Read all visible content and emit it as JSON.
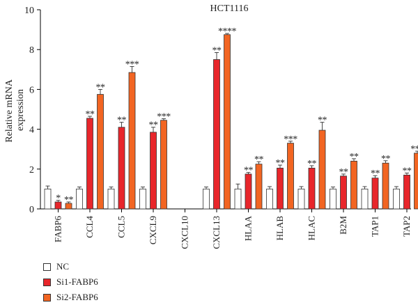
{
  "chart_data": {
    "type": "bar",
    "title": "HCT1116",
    "ylabel": "Relative mRNA expression",
    "ylim": [
      0,
      10
    ],
    "yticks": [
      0,
      2,
      4,
      6,
      8,
      10
    ],
    "categories": [
      "FABP6",
      "CCL4",
      "CCL5",
      "CXCL9",
      "CXCL10",
      "CXCL13",
      "HLAA",
      "HLAB",
      "HLAC",
      "B2M",
      "TAP1",
      "TAP2"
    ],
    "series": [
      {
        "name": "NC",
        "color": "#ffffff",
        "values": [
          1.0,
          1.0,
          1.0,
          1.0,
          null,
          1.0,
          1.0,
          1.0,
          1.0,
          1.0,
          1.0,
          1.0
        ],
        "errors": [
          0.15,
          0.1,
          0.1,
          0.1,
          null,
          0.1,
          0.25,
          0.12,
          0.12,
          0.1,
          0.12,
          0.12
        ],
        "sig": [
          "",
          "",
          "",
          "",
          "",
          "",
          "",
          "",
          "",
          "",
          "",
          ""
        ]
      },
      {
        "name": "Si1-FABP6",
        "color": "#e8262b",
        "values": [
          0.35,
          4.55,
          4.1,
          3.85,
          null,
          7.5,
          1.75,
          2.05,
          2.05,
          1.65,
          1.55,
          1.7
        ],
        "errors": [
          0.08,
          0.1,
          0.25,
          0.25,
          null,
          0.35,
          0.08,
          0.15,
          0.12,
          0.1,
          0.12,
          0.1
        ],
        "sig": [
          "*",
          "**",
          "**",
          "**",
          "",
          "**",
          "**",
          "**",
          "**",
          "**",
          "**",
          "**"
        ]
      },
      {
        "name": "Si2-FABP6",
        "color": "#f26522",
        "values": [
          0.28,
          5.75,
          6.85,
          4.45,
          null,
          8.75,
          2.25,
          3.3,
          3.95,
          2.4,
          2.3,
          2.8
        ],
        "errors": [
          0.07,
          0.25,
          0.3,
          0.08,
          null,
          0.06,
          0.12,
          0.1,
          0.4,
          0.12,
          0.12,
          0.1
        ],
        "sig": [
          "**",
          "**",
          "***",
          "***",
          "",
          "****",
          "**",
          "***",
          "**",
          "**",
          "**",
          "***"
        ]
      }
    ]
  }
}
